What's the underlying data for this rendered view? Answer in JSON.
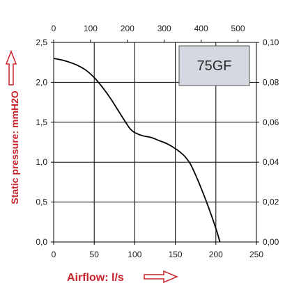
{
  "chart_data": {
    "type": "line",
    "series": [
      {
        "name": "75GF",
        "x": [
          0,
          10,
          20,
          30,
          40,
          50,
          60,
          70,
          80,
          90,
          95,
          100,
          110,
          120,
          130,
          140,
          150,
          160,
          165,
          170,
          180,
          190,
          200,
          205
        ],
        "y": [
          2.3,
          2.28,
          2.25,
          2.21,
          2.15,
          2.06,
          1.94,
          1.8,
          1.64,
          1.48,
          1.41,
          1.37,
          1.33,
          1.31,
          1.27,
          1.23,
          1.17,
          1.09,
          1.03,
          0.95,
          0.72,
          0.46,
          0.17,
          0.0
        ]
      }
    ],
    "xlabel": "Airflow: l/s",
    "ylabel": "Static pressure: mmH2O",
    "xlim": [
      0,
      250
    ],
    "ylim": [
      0,
      2.5
    ],
    "x_ticks": [
      "0",
      "50",
      "100",
      "150",
      "200",
      "250"
    ],
    "y_ticks": [
      "0,0",
      "0,5",
      "1,0",
      "1,5",
      "2,0",
      "2,5"
    ],
    "top_axis": {
      "lim": [
        0,
        500
      ],
      "ticks": [
        "0",
        "100",
        "200",
        "300",
        "400",
        "500"
      ]
    },
    "right_axis": {
      "lim": [
        0,
        0.1
      ],
      "ticks": [
        "0,00",
        "0,02",
        "0,04",
        "0,06",
        "0,08",
        "0,10"
      ]
    },
    "grid": true,
    "model_label": "75GF",
    "colors": {
      "curve": "#000000",
      "grid": "#000000",
      "label": "#c8232c",
      "model_box": "#d4d8e0"
    }
  }
}
